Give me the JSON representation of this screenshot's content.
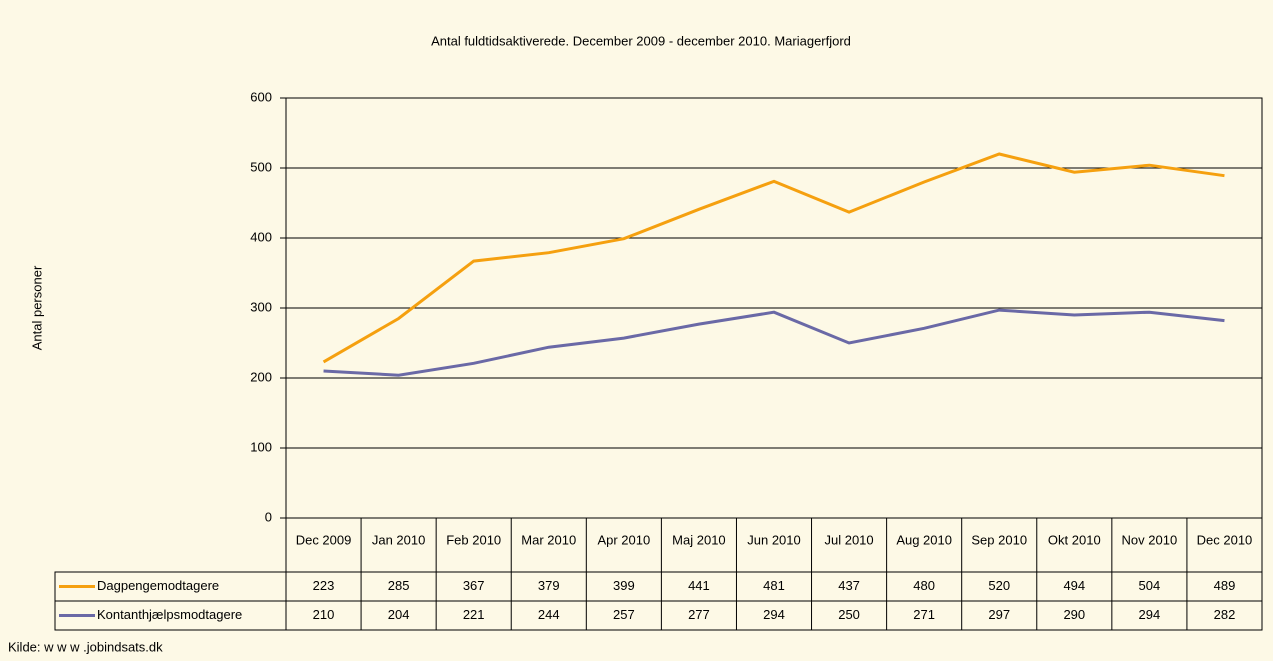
{
  "chart_data": {
    "type": "line",
    "title": "Antal fuldtidsaktiverede. December 2009 - december 2010. Mariagerfjord",
    "y_label": "Antal personer",
    "categories": [
      "Dec 2009",
      "Jan 2010",
      "Feb 2010",
      "Mar 2010",
      "Apr 2010",
      "Maj 2010",
      "Jun 2010",
      "Jul 2010",
      "Aug 2010",
      "Sep 2010",
      "Okt 2010",
      "Nov 2010",
      "Dec 2010"
    ],
    "series": [
      {
        "name": "Dagpengemodtagere",
        "color": "#f5a00f",
        "values": [
          223,
          285,
          367,
          379,
          399,
          441,
          481,
          437,
          480,
          520,
          494,
          504,
          489
        ]
      },
      {
        "name": "Kontanthjælpsmodtagere",
        "color": "#6a69a6",
        "values": [
          210,
          204,
          221,
          244,
          257,
          277,
          294,
          250,
          271,
          297,
          290,
          294,
          282
        ]
      }
    ],
    "ylim": [
      0,
      600
    ],
    "yticks": [
      0,
      100,
      200,
      300,
      400,
      500,
      600
    ],
    "grid": true,
    "source": "Kilde: w w w .jobindsats.dk"
  }
}
